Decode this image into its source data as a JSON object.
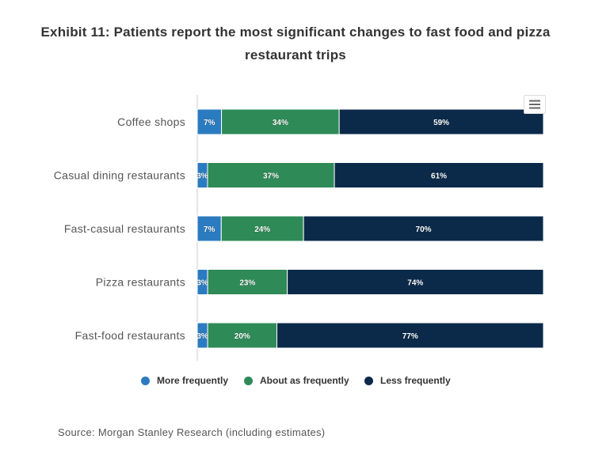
{
  "title_line1": "Exhibit 11: Patients report the most significant changes to fast food and pizza",
  "title_line2": "restaurant trips",
  "source": "Source: Morgan Stanley Research (including estimates)",
  "menu_icon": "hamburger-menu-icon",
  "colors": {
    "more": "#2b7bc0",
    "same": "#2e8a57",
    "less": "#0b2a4a",
    "label": "#555555"
  },
  "legend": [
    {
      "label": "More frequently",
      "color": "#2b7bc0"
    },
    {
      "label": "About as frequently",
      "color": "#2e8a57"
    },
    {
      "label": "Less frequently",
      "color": "#0b2a4a"
    }
  ],
  "chart_data": {
    "type": "bar",
    "orientation": "horizontal",
    "stacking": "percent",
    "title": "Exhibit 11: Patients report the most significant changes to fast food and pizza restaurant trips",
    "categories": [
      "Coffee shops",
      "Casual dining restaurants",
      "Fast-casual restaurants",
      "Pizza restaurants",
      "Fast-food restaurants"
    ],
    "series": [
      {
        "name": "More frequently",
        "values": [
          7,
          3,
          7,
          3,
          3
        ]
      },
      {
        "name": "About as frequently",
        "values": [
          34,
          37,
          24,
          23,
          20
        ]
      },
      {
        "name": "Less frequently",
        "values": [
          59,
          61,
          70,
          74,
          77
        ]
      }
    ],
    "data_labels": [
      [
        "7%",
        "3%",
        "7%",
        "3%",
        "3%"
      ],
      [
        "34%",
        "37%",
        "24%",
        "23%",
        "20%"
      ],
      [
        "59%",
        "61%",
        "70%",
        "74%",
        "77%"
      ]
    ],
    "xlim": [
      0,
      100
    ],
    "legend_position": "bottom"
  }
}
